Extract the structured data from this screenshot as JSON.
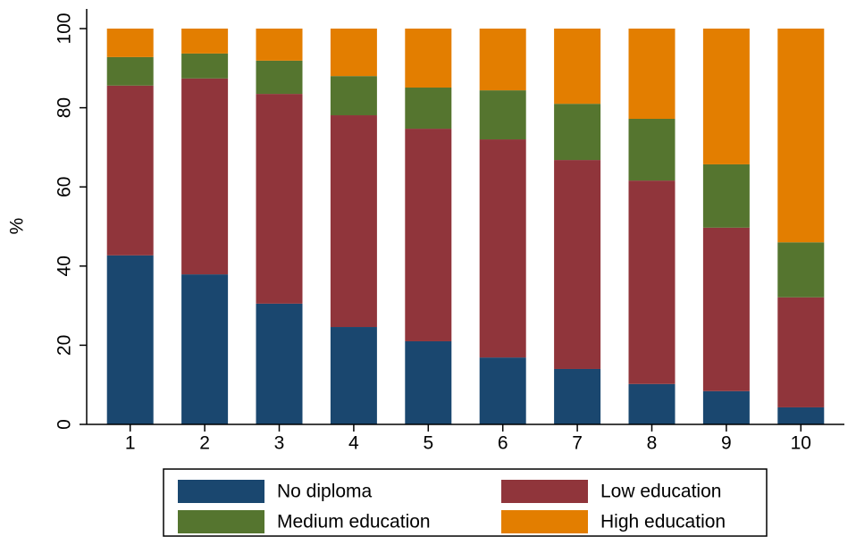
{
  "chart_data": {
    "type": "stacked_bar",
    "categories": [
      "1",
      "2",
      "3",
      "4",
      "5",
      "6",
      "7",
      "8",
      "9",
      "10"
    ],
    "y_label": "%",
    "series": [
      {
        "name": "No diploma",
        "color": "#1a476f",
        "values": [
          42.7,
          37.9,
          30.5,
          24.6,
          21.0,
          16.9,
          14.0,
          10.2,
          8.4,
          4.3
        ]
      },
      {
        "name": "Low education",
        "color": "#90353b",
        "values": [
          42.9,
          49.5,
          53.0,
          53.5,
          53.7,
          55.1,
          52.8,
          51.4,
          41.3,
          27.8
        ]
      },
      {
        "name": "Medium education",
        "color": "#55752f",
        "values": [
          7.2,
          6.3,
          8.4,
          9.9,
          10.4,
          12.4,
          14.2,
          15.6,
          16.0,
          13.9
        ]
      },
      {
        "name": "High education",
        "color": "#e37e00",
        "values": [
          7.2,
          6.3,
          8.1,
          12.0,
          14.9,
          15.6,
          19.0,
          22.8,
          34.3,
          54.0
        ]
      }
    ],
    "ylim": [
      0,
      100
    ],
    "yticks": [
      0,
      20,
      40,
      60,
      80,
      100
    ],
    "legend": "bottom"
  }
}
